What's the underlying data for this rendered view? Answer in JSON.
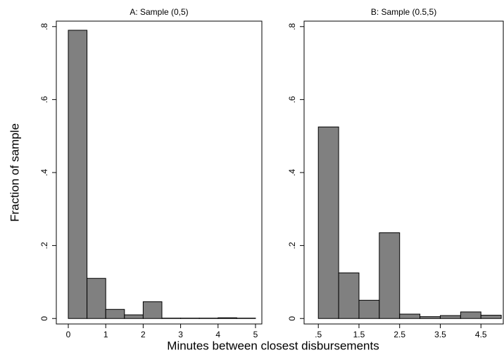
{
  "ylabel": "Fraction of sample",
  "xlabel": "Minutes between closest disbursements",
  "chart_data": [
    {
      "type": "histogram",
      "title": "A: Sample (0,5)",
      "bins": [
        0,
        0.5,
        1,
        1.5,
        2,
        2.5,
        3,
        3.5,
        4,
        4.5,
        5
      ],
      "values": [
        0.79,
        0.11,
        0.025,
        0.01,
        0.046,
        0.001,
        0.001,
        0.001,
        0.002,
        0.001
      ],
      "color": "#808080",
      "xlim": [
        -0.32,
        5.17
      ],
      "xticks": [
        0,
        1,
        2,
        3,
        4,
        5
      ],
      "ylim": [
        -0.015,
        0.815
      ],
      "yticks": [
        0,
        {
          "value": 0.2,
          "label": ".2"
        },
        {
          "value": 0.4,
          "label": ".4"
        },
        {
          "value": 0.6,
          "label": ".6"
        },
        {
          "value": 0.8,
          "label": ".8"
        }
      ]
    },
    {
      "type": "histogram",
      "title": "B: Sample (0.5,5)",
      "bins": [
        0.5,
        1,
        1.5,
        2,
        2.5,
        3,
        3.5,
        4,
        4.5,
        5
      ],
      "values": [
        0.525,
        0.125,
        0.05,
        0.235,
        0.012,
        0.005,
        0.008,
        0.018,
        0.009
      ],
      "color": "#808080",
      "xlim": [
        0.15,
        5.05
      ],
      "xticks": [
        {
          "value": 0.5,
          "label": ".5"
        },
        {
          "value": 1.5,
          "label": "1.5"
        },
        {
          "value": 2.5,
          "label": "2.5"
        },
        {
          "value": 3.5,
          "label": "3.5"
        },
        {
          "value": 4.5,
          "label": "4.5"
        }
      ],
      "ylim": [
        -0.015,
        0.815
      ],
      "yticks": [
        0,
        {
          "value": 0.2,
          "label": ".2"
        },
        {
          "value": 0.4,
          "label": ".4"
        },
        {
          "value": 0.6,
          "label": ".6"
        },
        {
          "value": 0.8,
          "label": ".8"
        }
      ]
    }
  ]
}
